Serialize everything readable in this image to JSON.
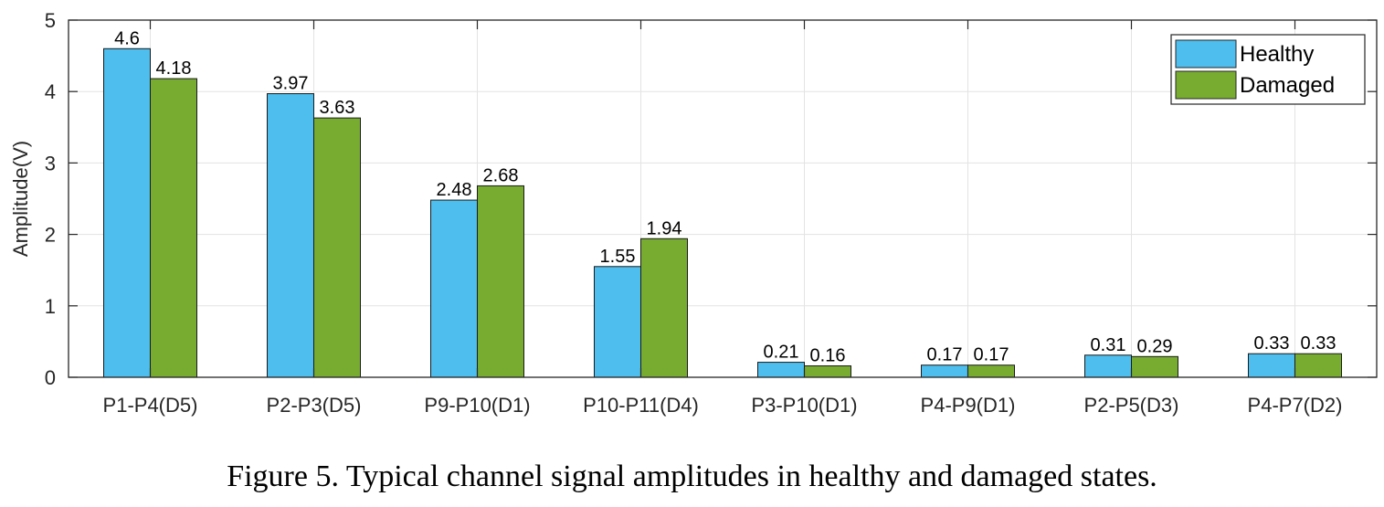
{
  "chart_data": {
    "type": "bar",
    "title": "",
    "xlabel": "",
    "ylabel": "Amplitude(V)",
    "ylim": [
      0,
      5
    ],
    "yticks": [
      "0",
      "1",
      "2",
      "3",
      "4",
      "5"
    ],
    "grid": true,
    "legend_position": "top-right",
    "categories": [
      "P1-P4(D5)",
      "P2-P3(D5)",
      "P9-P10(D1)",
      "P10-P11(D4)",
      "P3-P10(D1)",
      "P4-P9(D1)",
      "P2-P5(D3)",
      "P4-P7(D2)"
    ],
    "series": [
      {
        "name": "Healthy",
        "color": "#4DBEEE",
        "values": [
          4.6,
          3.97,
          2.48,
          1.55,
          0.21,
          0.17,
          0.31,
          0.33
        ],
        "labels": [
          "4.6",
          "3.97",
          "2.48",
          "1.55",
          "0.21",
          "0.17",
          "0.31",
          "0.33"
        ]
      },
      {
        "name": "Damaged",
        "color": "#77AC30",
        "values": [
          4.18,
          3.63,
          2.68,
          1.94,
          0.16,
          0.17,
          0.29,
          0.33
        ],
        "labels": [
          "4.18",
          "3.63",
          "2.68",
          "1.94",
          "0.16",
          "0.17",
          "0.29",
          "0.33"
        ]
      }
    ]
  },
  "caption": "Figure 5. Typical channel signal amplitudes in healthy and damaged states."
}
